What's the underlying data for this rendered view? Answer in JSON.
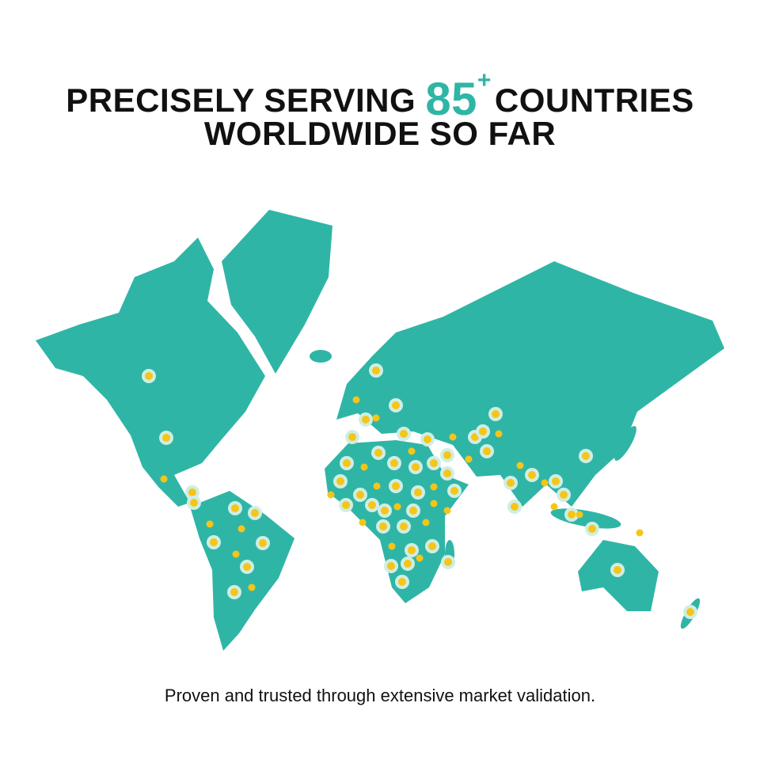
{
  "header": {
    "title_start": "PRECISELY SERVING",
    "number": "85",
    "superscript": "+",
    "title_end": "COUNTRIES",
    "title_line2": "WORLDWIDE SO FAR"
  },
  "caption": "Proven and trusted through extensive market validation."
}
